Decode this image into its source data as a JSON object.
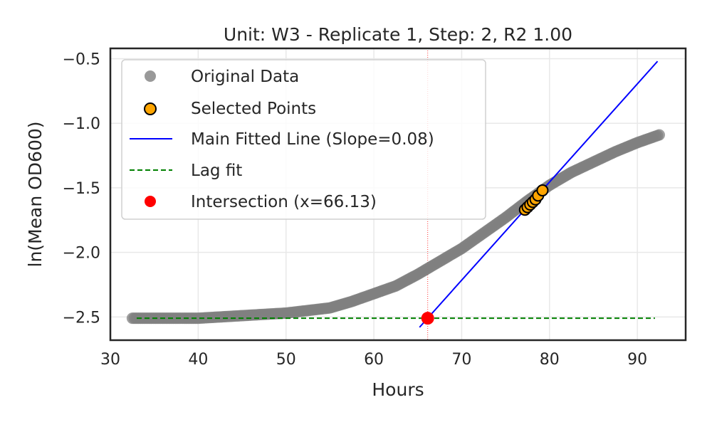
{
  "chart_data": {
    "type": "scatter",
    "title": "Unit: W3 - Replicate 1, Step: 2, R2 1.00",
    "xlabel": "Hours",
    "ylabel": "ln(Mean OD600)",
    "xlim": [
      30,
      95.5
    ],
    "ylim": [
      -2.68,
      -0.42
    ],
    "x_ticks": [
      30,
      40,
      50,
      60,
      70,
      80,
      90
    ],
    "y_ticks": [
      -2.5,
      -2.0,
      -1.5,
      -1.0,
      -0.5
    ],
    "x_tick_labels": [
      "30",
      "40",
      "50",
      "60",
      "70",
      "80",
      "90"
    ],
    "y_tick_labels": [
      "−2.5",
      "−2.0",
      "−1.5",
      "−1.0",
      "−0.5"
    ],
    "grid": true,
    "legend_position": "top-left",
    "colors": {
      "original": "#808080",
      "selected_fill": "#ffa500",
      "selected_edge": "#000000",
      "main_line": "#0000ff",
      "lag_line": "#008000",
      "intersection": "#ff0000",
      "vline": "#ff0000",
      "frame": "#262626"
    },
    "series": [
      {
        "name": "Original Data",
        "kind": "scatter",
        "x": [
          32.5,
          35,
          37.5,
          40,
          42.5,
          45,
          47.5,
          50,
          52.5,
          55,
          57.5,
          60,
          62.5,
          65,
          67.5,
          70,
          72.5,
          75,
          77.5,
          80,
          82.5,
          85,
          87.5,
          90,
          92.5
        ],
        "y": [
          -2.51,
          -2.51,
          -2.51,
          -2.51,
          -2.5,
          -2.49,
          -2.48,
          -2.47,
          -2.45,
          -2.43,
          -2.38,
          -2.32,
          -2.26,
          -2.17,
          -2.07,
          -1.97,
          -1.85,
          -1.73,
          -1.6,
          -1.48,
          -1.38,
          -1.3,
          -1.22,
          -1.15,
          -1.09
        ]
      },
      {
        "name": "Selected Points",
        "kind": "scatter",
        "x": [
          77.2,
          77.5,
          77.8,
          78.1,
          78.4,
          78.7,
          79.2
        ],
        "y": [
          -1.67,
          -1.65,
          -1.63,
          -1.61,
          -1.59,
          -1.56,
          -1.52
        ]
      },
      {
        "name": "Main Fitted Line (Slope=0.08)",
        "kind": "line",
        "style": "solid",
        "x": [
          65.2,
          92.3
        ],
        "y": [
          -2.58,
          -0.52
        ]
      },
      {
        "name": "Lag fit",
        "kind": "line",
        "style": "dashed",
        "x": [
          33.0,
          92.0
        ],
        "y": [
          -2.51,
          -2.51
        ]
      },
      {
        "name": "Intersection (x=66.13)",
        "kind": "scatter",
        "x": [
          66.13
        ],
        "y": [
          -2.51
        ]
      }
    ],
    "vertical_marker_x": 66.13
  }
}
